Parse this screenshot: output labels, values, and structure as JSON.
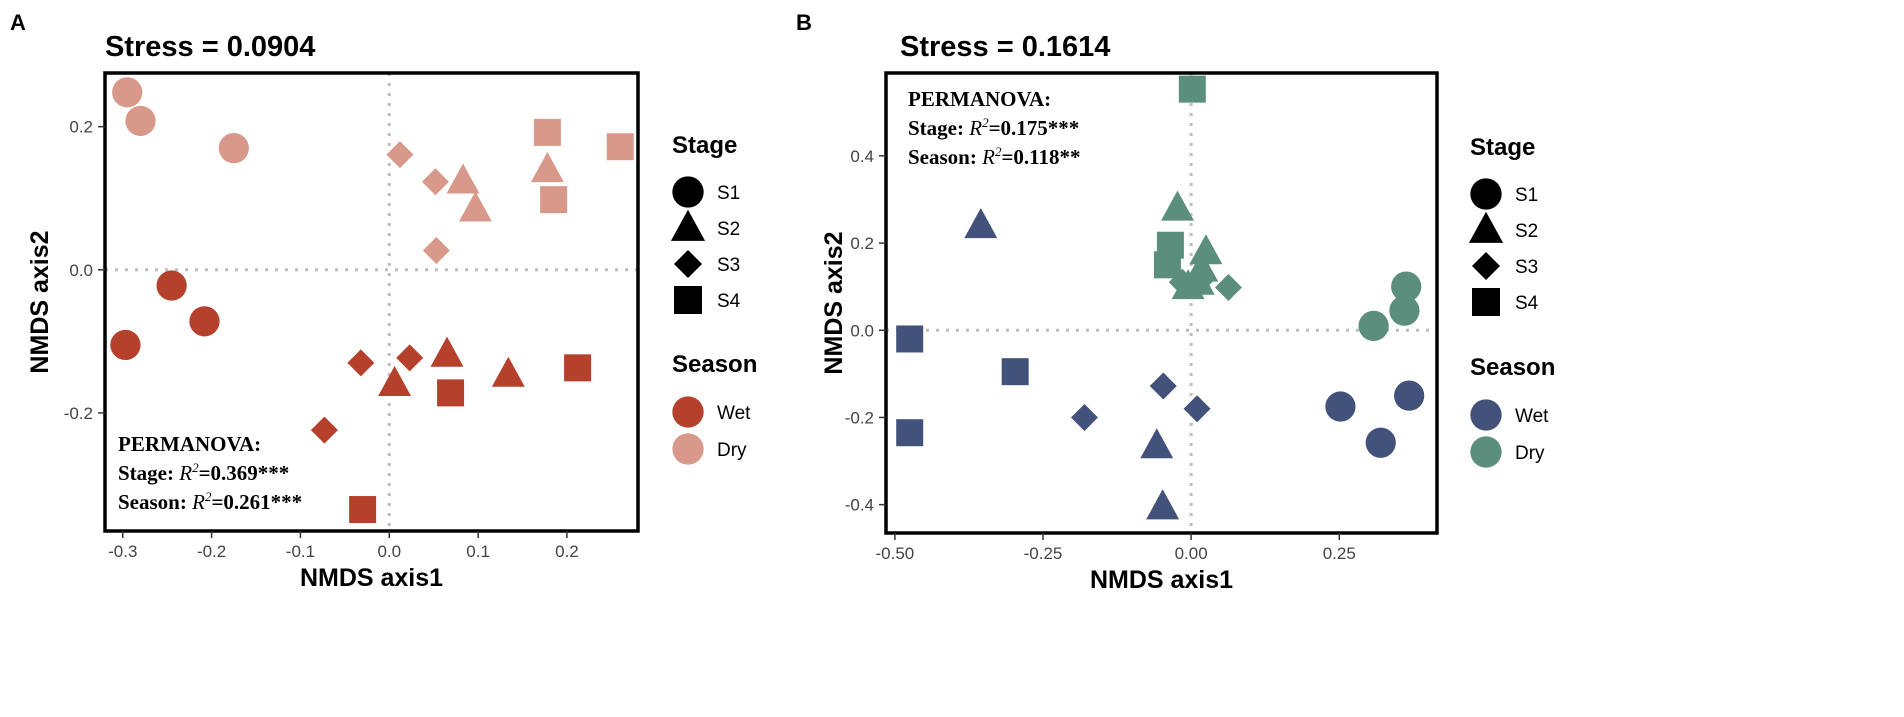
{
  "chart_data": [
    {
      "panel_label": "A",
      "type": "scatter",
      "title": "Stress = 0.0904",
      "xlabel": "NMDS axis1",
      "ylabel": "NMDS axis2",
      "xlim": [
        -0.32,
        0.28
      ],
      "ylim": [
        -0.365,
        0.275
      ],
      "xticks": [
        -0.3,
        -0.2,
        -0.1,
        0.0,
        0.1,
        0.2
      ],
      "xtick_labels": [
        "-0.3",
        "-0.2",
        "-0.1",
        "0.0",
        "0.1",
        "0.2"
      ],
      "yticks": [
        -0.2,
        0.0,
        0.2
      ],
      "ytick_labels": [
        "-0.2",
        "0.0",
        "0.2"
      ],
      "reference_lines": {
        "x": 0,
        "y": 0
      },
      "colors": {
        "Wet": "#b5402c",
        "Dry": "#d9998a"
      },
      "annotation": {
        "heading": "PERMANOVA:",
        "lines": [
          {
            "label": "Stage: ",
            "r": "R",
            "sup": "2",
            "value": "=0.369***"
          },
          {
            "label": "Season: ",
            "r": "R",
            "sup": "2",
            "value": "=0.261***"
          }
        ]
      },
      "legend": {
        "stage_title": "Stage",
        "stages": [
          {
            "shape": "circle",
            "label": "S1"
          },
          {
            "shape": "triangle",
            "label": "S2"
          },
          {
            "shape": "diamond",
            "label": "S3"
          },
          {
            "shape": "square",
            "label": "S4"
          }
        ],
        "season_title": "Season",
        "seasons": [
          {
            "name": "Wet",
            "label": "Wet"
          },
          {
            "name": "Dry",
            "label": "Dry"
          }
        ]
      },
      "points": [
        {
          "x": -0.295,
          "y": 0.248,
          "stage": "S1",
          "season": "Dry"
        },
        {
          "x": -0.28,
          "y": 0.208,
          "stage": "S1",
          "season": "Dry"
        },
        {
          "x": -0.175,
          "y": 0.17,
          "stage": "S1",
          "season": "Dry"
        },
        {
          "x": 0.012,
          "y": 0.161,
          "stage": "S3",
          "season": "Dry"
        },
        {
          "x": 0.052,
          "y": 0.123,
          "stage": "S3",
          "season": "Dry"
        },
        {
          "x": 0.053,
          "y": 0.027,
          "stage": "S3",
          "season": "Dry"
        },
        {
          "x": 0.083,
          "y": 0.124,
          "stage": "S2",
          "season": "Dry"
        },
        {
          "x": 0.097,
          "y": 0.085,
          "stage": "S2",
          "season": "Dry"
        },
        {
          "x": 0.178,
          "y": 0.14,
          "stage": "S2",
          "season": "Dry"
        },
        {
          "x": 0.178,
          "y": 0.192,
          "stage": "S4",
          "season": "Dry"
        },
        {
          "x": 0.185,
          "y": 0.098,
          "stage": "S4",
          "season": "Dry"
        },
        {
          "x": 0.26,
          "y": 0.172,
          "stage": "S4",
          "season": "Dry"
        },
        {
          "x": -0.245,
          "y": -0.022,
          "stage": "S1",
          "season": "Wet"
        },
        {
          "x": -0.208,
          "y": -0.072,
          "stage": "S1",
          "season": "Wet"
        },
        {
          "x": -0.297,
          "y": -0.105,
          "stage": "S1",
          "season": "Wet"
        },
        {
          "x": -0.032,
          "y": -0.13,
          "stage": "S3",
          "season": "Wet"
        },
        {
          "x": 0.023,
          "y": -0.123,
          "stage": "S3",
          "season": "Wet"
        },
        {
          "x": -0.073,
          "y": -0.224,
          "stage": "S3",
          "season": "Wet"
        },
        {
          "x": 0.065,
          "y": -0.118,
          "stage": "S2",
          "season": "Wet"
        },
        {
          "x": 0.006,
          "y": -0.159,
          "stage": "S2",
          "season": "Wet"
        },
        {
          "x": 0.134,
          "y": -0.146,
          "stage": "S2",
          "season": "Wet"
        },
        {
          "x": 0.069,
          "y": -0.172,
          "stage": "S4",
          "season": "Wet"
        },
        {
          "x": 0.212,
          "y": -0.137,
          "stage": "S4",
          "season": "Wet"
        },
        {
          "x": -0.03,
          "y": -0.335,
          "stage": "S4",
          "season": "Wet"
        }
      ]
    },
    {
      "panel_label": "B",
      "type": "scatter",
      "title": "Stress = 0.1614",
      "xlabel": "NMDS axis1",
      "ylabel": "NMDS axis2",
      "xlim": [
        -0.515,
        0.415
      ],
      "ylim": [
        -0.465,
        0.59
      ],
      "xticks": [
        -0.5,
        -0.25,
        0.0,
        0.25
      ],
      "xtick_labels": [
        "-0.50",
        "-0.25",
        "0.00",
        "0.25"
      ],
      "yticks": [
        -0.4,
        -0.2,
        0.0,
        0.2,
        0.4
      ],
      "ytick_labels": [
        "-0.4",
        "-0.2",
        "0.0",
        "0.2",
        "0.4"
      ],
      "reference_lines": {
        "x": 0,
        "y": 0
      },
      "colors": {
        "Wet": "#43527a",
        "Dry": "#5b8e7d"
      },
      "annotation": {
        "heading": "PERMANOVA:",
        "lines": [
          {
            "label": "Stage: ",
            "r": "R",
            "sup": "2",
            "value": "=0.175***"
          },
          {
            "label": "Season: ",
            "r": "R",
            "sup": "2",
            "value": "=0.118**"
          }
        ]
      },
      "legend": {
        "stage_title": "Stage",
        "stages": [
          {
            "shape": "circle",
            "label": "S1"
          },
          {
            "shape": "triangle",
            "label": "S2"
          },
          {
            "shape": "diamond",
            "label": "S3"
          },
          {
            "shape": "square",
            "label": "S4"
          }
        ],
        "season_title": "Season",
        "seasons": [
          {
            "name": "Wet",
            "label": "Wet"
          },
          {
            "name": "Dry",
            "label": "Dry"
          }
        ]
      },
      "points": [
        {
          "x": 0.002,
          "y": 0.553,
          "stage": "S4",
          "season": "Dry"
        },
        {
          "x": -0.023,
          "y": 0.28,
          "stage": "S2",
          "season": "Dry"
        },
        {
          "x": -0.035,
          "y": 0.195,
          "stage": "S4",
          "season": "Dry"
        },
        {
          "x": -0.04,
          "y": 0.15,
          "stage": "S4",
          "season": "Dry"
        },
        {
          "x": 0.025,
          "y": 0.18,
          "stage": "S2",
          "season": "Dry"
        },
        {
          "x": 0.018,
          "y": 0.14,
          "stage": "S2",
          "season": "Dry"
        },
        {
          "x": 0.012,
          "y": 0.11,
          "stage": "S2",
          "season": "Dry"
        },
        {
          "x": -0.005,
          "y": 0.1,
          "stage": "S2",
          "season": "Dry"
        },
        {
          "x": -0.015,
          "y": 0.11,
          "stage": "S3",
          "season": "Dry"
        },
        {
          "x": 0.02,
          "y": 0.12,
          "stage": "S3",
          "season": "Dry"
        },
        {
          "x": 0.063,
          "y": 0.098,
          "stage": "S3",
          "season": "Dry"
        },
        {
          "x": 0.363,
          "y": 0.1,
          "stage": "S1",
          "season": "Dry"
        },
        {
          "x": 0.36,
          "y": 0.045,
          "stage": "S1",
          "season": "Dry"
        },
        {
          "x": 0.308,
          "y": 0.01,
          "stage": "S1",
          "season": "Dry"
        },
        {
          "x": -0.355,
          "y": 0.24,
          "stage": "S2",
          "season": "Wet"
        },
        {
          "x": -0.475,
          "y": -0.02,
          "stage": "S4",
          "season": "Wet"
        },
        {
          "x": -0.475,
          "y": -0.235,
          "stage": "S4",
          "season": "Wet"
        },
        {
          "x": -0.297,
          "y": -0.095,
          "stage": "S4",
          "season": "Wet"
        },
        {
          "x": -0.047,
          "y": -0.128,
          "stage": "S3",
          "season": "Wet"
        },
        {
          "x": -0.18,
          "y": -0.2,
          "stage": "S3",
          "season": "Wet"
        },
        {
          "x": 0.01,
          "y": -0.18,
          "stage": "S3",
          "season": "Wet"
        },
        {
          "x": -0.058,
          "y": -0.265,
          "stage": "S2",
          "season": "Wet"
        },
        {
          "x": -0.048,
          "y": -0.405,
          "stage": "S2",
          "season": "Wet"
        },
        {
          "x": 0.252,
          "y": -0.175,
          "stage": "S1",
          "season": "Wet"
        },
        {
          "x": 0.32,
          "y": -0.258,
          "stage": "S1",
          "season": "Wet"
        },
        {
          "x": 0.368,
          "y": -0.15,
          "stage": "S1",
          "season": "Wet"
        }
      ]
    }
  ]
}
